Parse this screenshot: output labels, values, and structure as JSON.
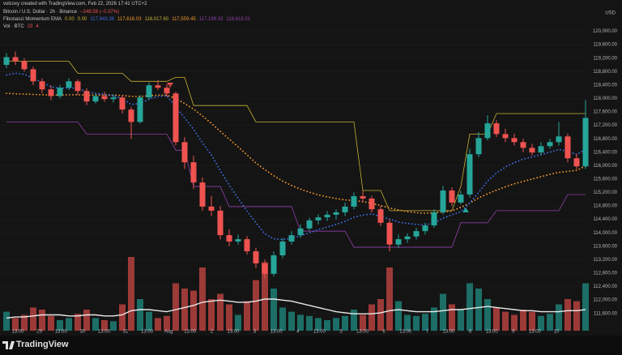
{
  "chart_data": {
    "type": "candlestick",
    "credit": "volcoxy created with TradingView.com, Feb 22, 2026 17:41 UTC+2",
    "title": "Bitcoin / U.S. Dollar · 2h · Binance",
    "change": "−248.58 (−0.37%)",
    "indicator": "Fibonacci Momentum EMA",
    "indicator_values": [
      "0.00",
      "0.00",
      "117,943.36",
      "117,616.03",
      "116,017.60",
      "117,559.45",
      "117,189.33",
      "116,618.31"
    ],
    "volume_label": "Vol · BTC",
    "volume_label_values": [
      "23",
      "4"
    ],
    "currency": "USD",
    "up_color": "#26a69a",
    "down_color": "#ef5350",
    "grid": true,
    "ylim": [
      111400,
      120400
    ],
    "yticks": [
      {
        "value": 111600,
        "label": "111,600.00"
      },
      {
        "value": 112000,
        "label": "112,000.00"
      },
      {
        "value": 112400,
        "label": "112,400.00"
      },
      {
        "value": 112800,
        "label": "112,800.00"
      },
      {
        "value": 113200,
        "label": "113,200.00"
      },
      {
        "value": 113600,
        "label": "113,600.00"
      },
      {
        "value": 114000,
        "label": "114,000.00"
      },
      {
        "value": 114400,
        "label": "114,400.00"
      },
      {
        "value": 114800,
        "label": "114,800.00"
      },
      {
        "value": 115200,
        "label": "115,200.00"
      },
      {
        "value": 115600,
        "label": "115,600.00"
      },
      {
        "value": 116000,
        "label": "116,000.00"
      },
      {
        "value": 116400,
        "label": "116,400.00"
      },
      {
        "value": 116800,
        "label": "116,800.00"
      },
      {
        "value": 117200,
        "label": "117,200.00"
      },
      {
        "value": 117600,
        "label": "117,600.00"
      },
      {
        "value": 118000,
        "label": "118,000.00"
      },
      {
        "value": 118400,
        "label": "118,400.00"
      },
      {
        "value": 118800,
        "label": "118,800.00"
      },
      {
        "value": 119200,
        "label": "119,200.00"
      },
      {
        "value": 119600,
        "label": "119,600.00"
      },
      {
        "value": 120000,
        "label": "120,000.00"
      }
    ],
    "x_labels": [
      "13:00",
      "29",
      "13:00",
      "30",
      "13:00",
      "31",
      "13:00",
      "Aug",
      "13:00",
      "2",
      "13:00",
      "3",
      "13:00",
      "4",
      "13:00",
      "5",
      "13:00",
      "6",
      "13:00",
      "7",
      "13:00",
      "8",
      "13:00",
      "9",
      "13:00",
      "10"
    ],
    "candles": [
      [
        119000,
        119350,
        118900,
        119230
      ],
      [
        119230,
        119400,
        119000,
        119110
      ],
      [
        119110,
        119200,
        118800,
        118870
      ],
      [
        118870,
        118950,
        118400,
        118510
      ],
      [
        118510,
        118600,
        118150,
        118270
      ],
      [
        118270,
        118380,
        117950,
        118070
      ],
      [
        118070,
        118400,
        118000,
        118320
      ],
      [
        118320,
        118600,
        118250,
        118510
      ],
      [
        118510,
        118560,
        118100,
        118220
      ],
      [
        118220,
        118300,
        117800,
        117910
      ],
      [
        117910,
        118150,
        117850,
        118070
      ],
      [
        118070,
        118200,
        117900,
        117980
      ],
      [
        117980,
        118120,
        117880,
        118030
      ],
      [
        118030,
        118100,
        117550,
        117670
      ],
      [
        117670,
        117750,
        116800,
        117300
      ],
      [
        117300,
        118100,
        117250,
        118030
      ],
      [
        118030,
        118480,
        117950,
        118390
      ],
      [
        118390,
        118550,
        118250,
        118320
      ],
      [
        118320,
        118420,
        118050,
        118150
      ],
      [
        118150,
        118200,
        116600,
        116700
      ],
      [
        116700,
        116850,
        115900,
        116100
      ],
      [
        116100,
        116300,
        115300,
        115500
      ],
      [
        115500,
        115650,
        114650,
        114780
      ],
      [
        114780,
        115100,
        114500,
        114660
      ],
      [
        114660,
        114800,
        113800,
        113930
      ],
      [
        113930,
        114100,
        113600,
        113740
      ],
      [
        113740,
        113950,
        113650,
        113810
      ],
      [
        113810,
        113900,
        113350,
        113450
      ],
      [
        113450,
        113550,
        112950,
        113090
      ],
      [
        113090,
        113200,
        112650,
        112780
      ],
      [
        112780,
        113450,
        112700,
        113330
      ],
      [
        113330,
        113850,
        113250,
        113740
      ],
      [
        113740,
        114050,
        113650,
        113930
      ],
      [
        113930,
        114250,
        113850,
        114130
      ],
      [
        114130,
        114450,
        114050,
        114370
      ],
      [
        114370,
        114550,
        114250,
        114460
      ],
      [
        114460,
        114650,
        114350,
        114540
      ],
      [
        114540,
        114700,
        114400,
        114610
      ],
      [
        114610,
        114900,
        114500,
        114780
      ],
      [
        114780,
        115200,
        114700,
        115090
      ],
      [
        115090,
        115250,
        114900,
        115020
      ],
      [
        115020,
        115100,
        114600,
        114700
      ],
      [
        114700,
        114800,
        114200,
        114300
      ],
      [
        114300,
        114400,
        113450,
        113650
      ],
      [
        113650,
        113950,
        113550,
        113810
      ],
      [
        113810,
        113980,
        113700,
        113890
      ],
      [
        113890,
        114150,
        113800,
        114050
      ],
      [
        114050,
        114300,
        113950,
        114220
      ],
      [
        114220,
        114700,
        114150,
        114610
      ],
      [
        114610,
        115400,
        114550,
        115260
      ],
      [
        115260,
        115350,
        114800,
        114900
      ],
      [
        114900,
        115250,
        114850,
        115140
      ],
      [
        115140,
        116500,
        115050,
        116340
      ],
      [
        116340,
        117000,
        116250,
        116820
      ],
      [
        116820,
        117500,
        116750,
        117260
      ],
      [
        117260,
        117350,
        116850,
        116940
      ],
      [
        116940,
        117100,
        116700,
        116820
      ],
      [
        116820,
        116950,
        116600,
        116700
      ],
      [
        116700,
        116800,
        116400,
        116530
      ],
      [
        116530,
        116650,
        116300,
        116390
      ],
      [
        116390,
        116700,
        116300,
        116580
      ],
      [
        116580,
        116800,
        116500,
        116700
      ],
      [
        116700,
        117300,
        116600,
        116870
      ],
      [
        116870,
        116950,
        116100,
        116220
      ],
      [
        116220,
        116350,
        115900,
        115980
      ],
      [
        115980,
        117950,
        115900,
        117420
      ]
    ],
    "lines": [
      {
        "color": "#c9b233",
        "style": "solid",
        "values": [
          119110,
          119110,
          119110,
          119110,
          119110,
          119110,
          119110,
          119110,
          118750,
          118750,
          118750,
          118750,
          118750,
          118750,
          118510,
          118510,
          118510,
          118510,
          118510,
          118630,
          118630,
          117790,
          117790,
          117790,
          117790,
          117790,
          117790,
          117790,
          117300,
          117300,
          117300,
          117300,
          117300,
          117300,
          117300,
          117300,
          117300,
          117300,
          117300,
          117300,
          115260,
          115260,
          115260,
          114660,
          114660,
          114660,
          114660,
          114660,
          114660,
          114660,
          114660,
          115380,
          116940,
          116940,
          116940,
          117550,
          117550,
          117550,
          117550,
          117550,
          117550,
          117550,
          117550,
          117550,
          117550,
          117550
        ]
      },
      {
        "color": "#8e3fa8",
        "style": "solid",
        "values": [
          117300,
          117300,
          117300,
          117300,
          117300,
          117300,
          117300,
          117300,
          117300,
          116940,
          116940,
          116940,
          116940,
          116940,
          116940,
          116940,
          116940,
          116940,
          116940,
          116460,
          116460,
          115380,
          115380,
          115380,
          115380,
          114780,
          114780,
          114780,
          114780,
          114780,
          114780,
          114780,
          114780,
          114050,
          114050,
          114050,
          114050,
          114050,
          114050,
          113570,
          113570,
          113570,
          113570,
          113570,
          113570,
          113570,
          113570,
          113570,
          113570,
          113570,
          113570,
          114300,
          114300,
          114300,
          114300,
          114660,
          114660,
          114660,
          114660,
          114660,
          114660,
          114660,
          114660,
          115140,
          115140,
          115140
        ]
      },
      {
        "color": "#f0962c",
        "style": "dotted",
        "values": [
          118150,
          118140,
          118130,
          118120,
          118110,
          118100,
          118100,
          118110,
          118110,
          118100,
          118100,
          118100,
          118100,
          118090,
          118060,
          118060,
          118080,
          118100,
          118100,
          118000,
          117850,
          117680,
          117480,
          117260,
          117020,
          116790,
          116560,
          116320,
          116080,
          115880,
          115700,
          115540,
          115410,
          115300,
          115210,
          115130,
          115070,
          115020,
          114980,
          114960,
          114930,
          114880,
          114810,
          114740,
          114680,
          114630,
          114600,
          114580,
          114600,
          114620,
          114650,
          114760,
          114880,
          115040,
          115160,
          115270,
          115370,
          115460,
          115530,
          115600,
          115670,
          115740,
          115800,
          115830,
          115860,
          115990
        ]
      },
      {
        "color": "#3d6be0",
        "style": "dotted",
        "values": [
          118700,
          118750,
          118720,
          118600,
          118480,
          118350,
          118300,
          118320,
          118300,
          118200,
          118150,
          118120,
          118080,
          118000,
          117820,
          117850,
          117980,
          118060,
          118080,
          117750,
          117420,
          117080,
          116680,
          116320,
          115850,
          115420,
          115030,
          114650,
          114300,
          113970,
          113820,
          113800,
          113840,
          113910,
          114000,
          114090,
          114170,
          114250,
          114340,
          114460,
          114530,
          114560,
          114490,
          114410,
          114320,
          114280,
          114250,
          114240,
          114290,
          114440,
          114530,
          114630,
          114890,
          115200,
          115540,
          115780,
          115960,
          116090,
          116190,
          116260,
          116330,
          116400,
          116480,
          116430,
          116330,
          116480
        ]
      }
    ],
    "volume": {
      "up_color": "#1c6e66",
      "down_color": "#9c3a38",
      "ma_color": "#e8e8e8",
      "values": [
        18,
        12,
        15,
        22,
        20,
        14,
        10,
        12,
        16,
        20,
        12,
        10,
        9,
        25,
        70,
        30,
        18,
        12,
        14,
        45,
        40,
        38,
        60,
        30,
        35,
        25,
        15,
        28,
        48,
        65,
        40,
        22,
        18,
        15,
        14,
        12,
        10,
        12,
        14,
        20,
        15,
        25,
        30,
        60,
        28,
        15,
        14,
        16,
        22,
        35,
        25,
        20,
        45,
        40,
        30,
        22,
        18,
        15,
        20,
        18,
        14,
        16,
        25,
        30,
        28,
        45
      ],
      "ma": [
        12,
        13,
        13,
        14,
        15,
        15,
        15,
        14,
        14,
        15,
        15,
        14,
        14,
        15,
        19,
        20,
        20,
        19,
        18,
        20,
        22,
        24,
        27,
        28,
        29,
        28,
        27,
        27,
        28,
        30,
        30,
        29,
        28,
        26,
        24,
        22,
        20,
        18,
        17,
        16,
        16,
        16,
        17,
        19,
        20,
        19,
        18,
        18,
        18,
        19,
        20,
        20,
        21,
        22,
        23,
        22,
        21,
        20,
        19,
        19,
        18,
        18,
        18,
        19,
        19,
        20
      ]
    }
  },
  "footer": {
    "logo": "TradingView"
  }
}
